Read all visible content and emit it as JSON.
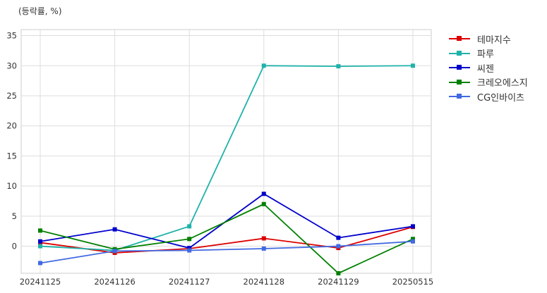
{
  "chart_data": {
    "type": "line",
    "unit_label": "(등락률, %)",
    "categories": [
      "20241125",
      "20241126",
      "20241127",
      "20241128",
      "20241129",
      "20250515"
    ],
    "ylim": [
      -4.5,
      36
    ],
    "yticks": [
      0,
      5,
      10,
      15,
      20,
      25,
      30,
      35
    ],
    "grid": true,
    "legend_position": "right",
    "series": [
      {
        "name": "테마지수",
        "color": "#dd0000",
        "values": [
          0.6,
          -1.1,
          -0.4,
          1.3,
          -0.3,
          3.2
        ]
      },
      {
        "name": "파루",
        "color": "#20b2aa",
        "values": [
          0.0,
          -0.7,
          3.3,
          30.0,
          29.9,
          30.0
        ]
      },
      {
        "name": "씨젠",
        "color": "#0000cc",
        "values": [
          0.8,
          2.8,
          -0.3,
          8.7,
          1.4,
          3.3
        ]
      },
      {
        "name": "크레오에스지",
        "color": "#008000",
        "values": [
          2.6,
          -0.5,
          1.2,
          7.0,
          -4.5,
          1.2
        ]
      },
      {
        "name": "CG인바이츠",
        "color": "#4169e1",
        "values": [
          -2.8,
          -0.8,
          -0.7,
          -0.4,
          0.0,
          0.8
        ]
      }
    ]
  }
}
